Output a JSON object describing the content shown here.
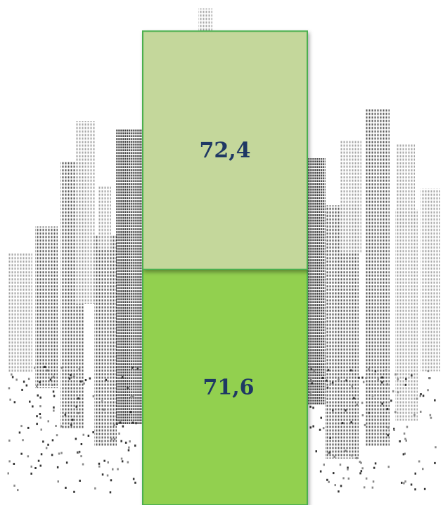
{
  "chart_data": {
    "type": "bar",
    "stacked": true,
    "categories": [
      ""
    ],
    "series": [
      {
        "values": [
          71.6
        ],
        "color": "#92d050",
        "label": "71,6",
        "position": "bottom"
      },
      {
        "values": [
          72.4
        ],
        "color": "#c4d79b",
        "label": "72,4",
        "position": "top"
      }
    ],
    "data_label_color": "#1f3864",
    "bar_border_color": "#4caf50",
    "background": "city-skyline-silhouette",
    "grid": false,
    "legend": "none"
  }
}
